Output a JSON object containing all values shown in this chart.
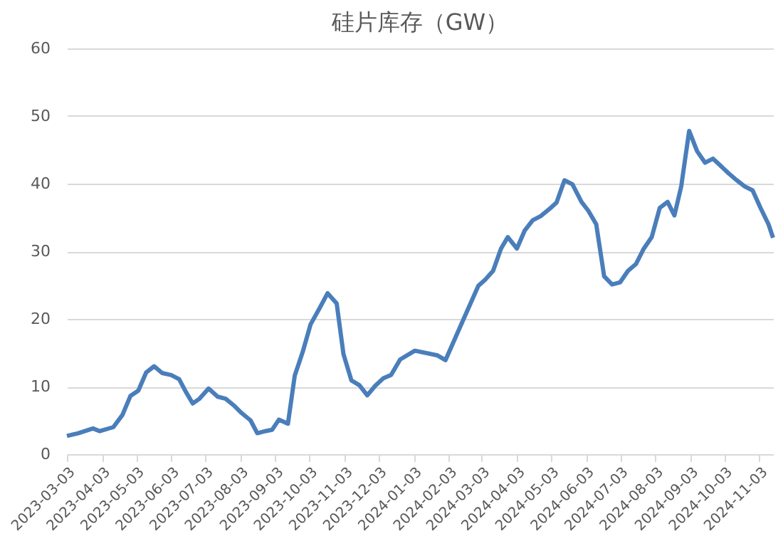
{
  "chart_data": {
    "type": "line",
    "title": "硅片库存（GW）",
    "x": [
      "2023-03-03",
      "2023-03-13",
      "2023-03-26",
      "2023-04-01",
      "2023-04-13",
      "2023-04-21",
      "2023-04-28",
      "2023-05-05",
      "2023-05-12",
      "2023-05-19",
      "2023-05-26",
      "2023-06-03",
      "2023-06-10",
      "2023-06-16",
      "2023-06-22",
      "2023-06-28",
      "2023-07-06",
      "2023-07-14",
      "2023-07-21",
      "2023-07-29",
      "2023-08-04",
      "2023-08-12",
      "2023-08-18",
      "2023-08-25",
      "2023-08-31",
      "2023-09-06",
      "2023-09-14",
      "2023-09-20",
      "2023-09-27",
      "2023-10-04",
      "2023-10-12",
      "2023-10-19",
      "2023-10-27",
      "2023-11-02",
      "2023-11-09",
      "2023-11-16",
      "2023-11-23",
      "2023-11-30",
      "2023-12-07",
      "2023-12-14",
      "2023-12-22",
      "2024-01-04",
      "2024-01-24",
      "2024-01-31",
      "2024-02-15",
      "2024-02-29",
      "2024-03-06",
      "2024-03-13",
      "2024-03-20",
      "2024-03-26",
      "2024-04-03",
      "2024-04-10",
      "2024-04-17",
      "2024-04-24",
      "2024-05-02",
      "2024-05-08",
      "2024-05-15",
      "2024-05-22",
      "2024-05-30",
      "2024-06-05",
      "2024-06-12",
      "2024-06-19",
      "2024-06-26",
      "2024-07-03",
      "2024-07-10",
      "2024-07-17",
      "2024-07-24",
      "2024-07-31",
      "2024-08-07",
      "2024-08-14",
      "2024-08-20",
      "2024-08-26",
      "2024-09-02",
      "2024-09-09",
      "2024-09-16",
      "2024-09-23",
      "2024-09-30",
      "2024-10-07",
      "2024-10-14",
      "2024-10-21",
      "2024-10-28",
      "2024-11-04",
      "2024-11-11",
      "2024-11-15"
    ],
    "series": [
      {
        "color": "#4a7ebb",
        "values": [
          2.7,
          3.1,
          3.8,
          3.4,
          4.0,
          5.8,
          8.6,
          9.4,
          12.1,
          13.0,
          12.0,
          11.7,
          11.1,
          9.2,
          7.5,
          8.2,
          9.7,
          8.5,
          8.2,
          7.1,
          6.1,
          5.0,
          3.1,
          3.4,
          3.6,
          5.1,
          4.5,
          11.6,
          15.1,
          19.2,
          21.6,
          23.8,
          22.3,
          14.8,
          10.9,
          10.2,
          8.7,
          10.1,
          11.2,
          11.7,
          14.0,
          15.3,
          14.6,
          13.9,
          19.6,
          24.9,
          25.8,
          27.1,
          30.4,
          32.1,
          30.4,
          33.1,
          34.6,
          35.2,
          36.3,
          37.2,
          40.5,
          39.9,
          37.3,
          36.0,
          34.0,
          26.3,
          25.1,
          25.4,
          27.1,
          28.1,
          30.4,
          32.1,
          36.4,
          37.3,
          35.3,
          39.6,
          47.8,
          44.8,
          43.1,
          43.7,
          42.6,
          41.5,
          40.5,
          39.6,
          39.0,
          36.4,
          34.0,
          32.0
        ]
      }
    ],
    "xlim": [
      "2023-03-03",
      "2024-11-15"
    ],
    "xticks": [
      "2023-03-03",
      "2023-04-03",
      "2023-05-03",
      "2023-06-03",
      "2023-07-03",
      "2023-08-03",
      "2023-09-03",
      "2023-10-03",
      "2023-11-03",
      "2023-12-03",
      "2024-01-03",
      "2024-02-03",
      "2024-03-03",
      "2024-04-03",
      "2024-05-03",
      "2024-06-03",
      "2024-07-03",
      "2024-08-03",
      "2024-09-03",
      "2024-10-03",
      "2024-11-03"
    ],
    "ylim": [
      0,
      60
    ],
    "yticks": [
      0,
      10,
      20,
      30,
      40,
      50,
      60
    ],
    "grid": "y",
    "legend": false,
    "marker": "none",
    "line_style": "solid"
  }
}
